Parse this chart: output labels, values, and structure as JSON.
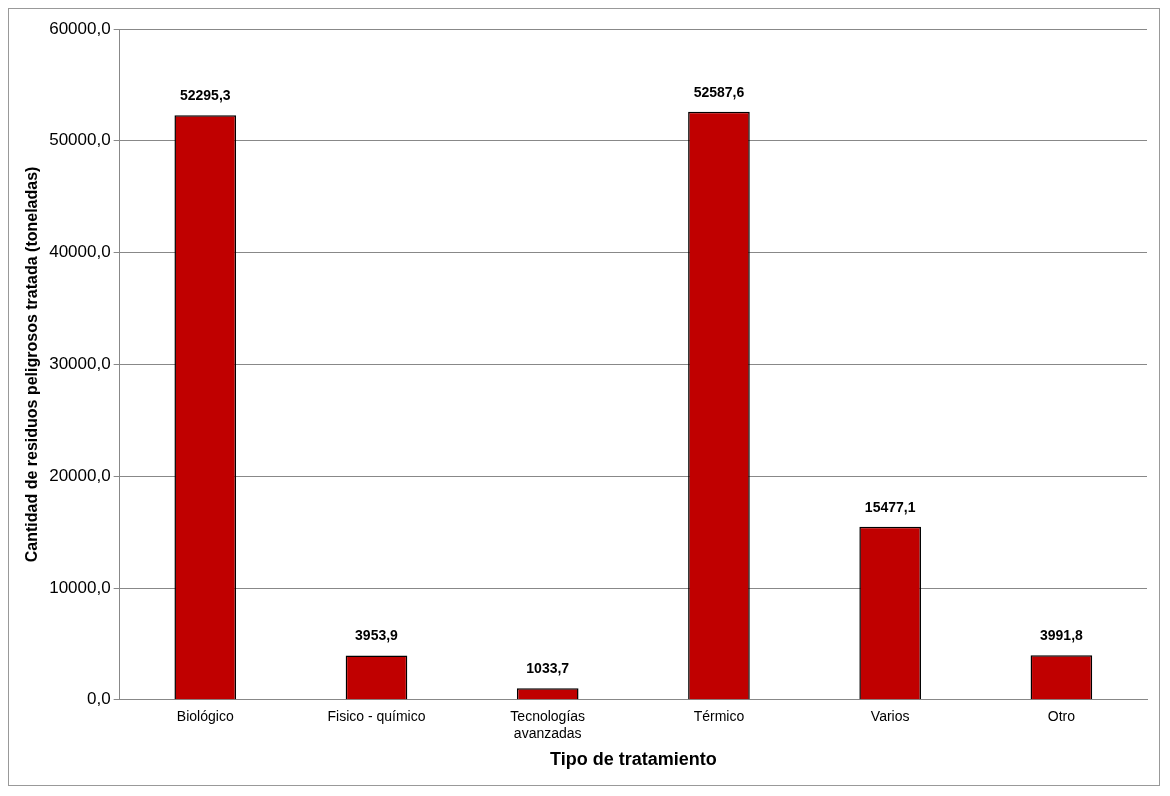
{
  "chart_data": {
    "type": "bar",
    "xlabel": "Tipo de tratamiento",
    "ylabel": "Cantidad de residuos peligrosos tratada (toneladas)",
    "categories": [
      "Biológico",
      "Fisico - químico",
      "Tecnologías avanzadas",
      "Térmico",
      "Varios",
      "Otro"
    ],
    "values": [
      52295.3,
      3953.9,
      1033.7,
      52587.6,
      15477.1,
      3991.8
    ],
    "value_labels": [
      "52295,3",
      "3953,9",
      "1033,7",
      "52587,6",
      "15477,1",
      "3991,8"
    ],
    "color": "#c00000",
    "ylim": [
      0,
      60000
    ],
    "yticks": [
      {
        "value": 0,
        "label": "0,0"
      },
      {
        "value": 10000,
        "label": "10000,0"
      },
      {
        "value": 20000,
        "label": "20000,0"
      },
      {
        "value": 30000,
        "label": "30000,0"
      },
      {
        "value": 40000,
        "label": "40000,0"
      },
      {
        "value": 50000,
        "label": "50000,0"
      },
      {
        "value": 60000,
        "label": "60000,0"
      }
    ],
    "grid": "y",
    "legend": false
  }
}
